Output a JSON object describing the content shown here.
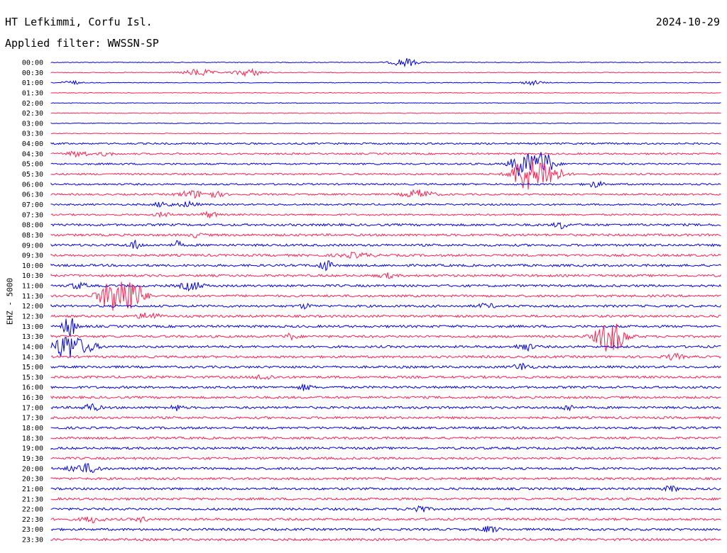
{
  "header": {
    "station": "HT Lefkimmi, Corfu Isl.",
    "date": "2024-10-29",
    "filter": "Applied filter: WWSSN-SP"
  },
  "chart_data": {
    "type": "line",
    "title": "HT Lefkimmi, Corfu Isl.",
    "ylabel": "EHZ - 5000",
    "rows": [
      "00:00",
      "00:30",
      "01:00",
      "01:30",
      "02:00",
      "02:30",
      "03:00",
      "03:30",
      "04:00",
      "04:30",
      "05:00",
      "05:30",
      "06:00",
      "06:30",
      "07:00",
      "07:30",
      "08:00",
      "08:30",
      "09:00",
      "09:30",
      "10:00",
      "10:30",
      "11:00",
      "11:30",
      "12:00",
      "12:30",
      "13:00",
      "13:30",
      "14:00",
      "14:30",
      "15:00",
      "15:30",
      "16:00",
      "16:30",
      "17:00",
      "17:30",
      "18:00",
      "18:30",
      "19:00",
      "19:30",
      "20:00",
      "20:30",
      "21:00",
      "21:30",
      "22:00",
      "22:30",
      "23:00",
      "23:30"
    ],
    "colors": {
      "even": "#0000e0",
      "odd": "#ff2050"
    },
    "grid": false
  }
}
